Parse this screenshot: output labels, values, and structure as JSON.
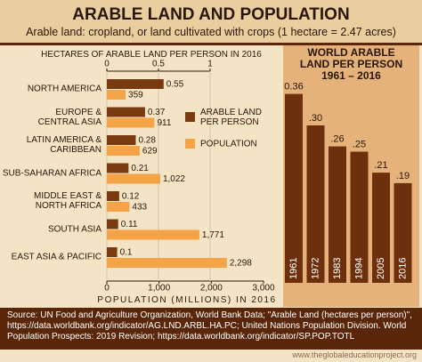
{
  "title": "ARABLE LAND AND POPULATION",
  "subtitle": "Arable land: cropland, or land cultivated with crops  (1 hectare = 2.47 acres)",
  "source": "Source:  UN Food and Agriculture Organization, World Bank Data; \"Arable Land (hectares per person)\", https://data.worldbank.org/indicator/AG.LND.ARBL.HA.PC; United Nations Population Division. World Population Prospects: 2019 Revision; https://data.worldbank.org/indicator/SP.POP.TOTL",
  "credit": "www.theglobaleducationproject.org",
  "chart_data": [
    {
      "type": "hbar",
      "xlabel": "HECTARES OF ARABLE LAND PER PERSON IN 2016",
      "x2label": "POPULATION (MILLIONS) IN 2016",
      "categories": [
        "NORTH AMERICA",
        "EUROPE &\nCENTRAL ASIA",
        "LATIN AMERICA &\nCARIBBEAN",
        "SUB-SAHARAN AFRICA",
        "MIDDLE EAST &\nNORTH AFRICA",
        "SOUTH ASIA",
        "EAST ASIA & PACIFIC"
      ],
      "xlim": [
        0,
        1
      ],
      "xticks": [
        0,
        0.5,
        1
      ],
      "x2lim": [
        0,
        3000
      ],
      "x2ticks": [
        0,
        {
          "value": 1000,
          "label": "1,000"
        },
        {
          "value": 2000,
          "label": "2,000"
        },
        {
          "value": 3000,
          "label": "3,000"
        }
      ],
      "grid": true,
      "legend": "center-right",
      "series": [
        {
          "name": "ARABLE LAND\nPER PERSON",
          "color": "#7a3a10",
          "axis": "x",
          "values": [
            0.55,
            0.37,
            0.28,
            0.21,
            0.12,
            0.11,
            0.1
          ]
        },
        {
          "name": "POPULATION",
          "color": "#f4a447",
          "axis": "x2",
          "values": [
            359,
            911,
            629,
            1022,
            433,
            1771,
            2298
          ],
          "value_labels": [
            "359",
            "911",
            "629",
            "1,022",
            "433",
            "1,771",
            "2,298"
          ]
        }
      ]
    },
    {
      "type": "bar",
      "title": "WORLD ARABLE\nLAND PER PERSON\n1961 – 2016",
      "categories": [
        "1961",
        "1972",
        "1983",
        "1994",
        "2005",
        "2016"
      ],
      "values": [
        0.36,
        0.3,
        0.26,
        0.25,
        0.21,
        0.19
      ],
      "value_labels": [
        "0.36",
        ".30",
        ".26",
        ".25",
        ".21",
        ".19"
      ],
      "color": "#6e300c"
    }
  ]
}
